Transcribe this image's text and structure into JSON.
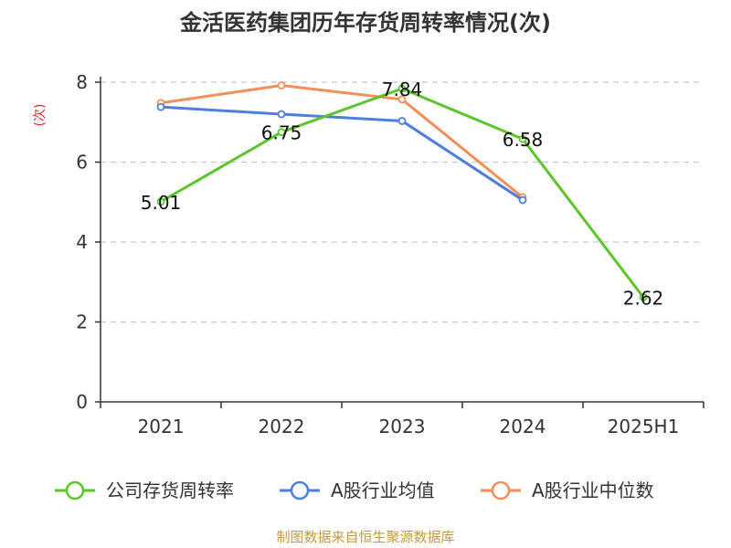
{
  "chart_data": {
    "type": "line",
    "title": "金活医药集团历年存货周转率情况(次)",
    "ylabel": "(次)",
    "xlabel": "",
    "categories": [
      "2021",
      "2022",
      "2023",
      "2024",
      "2025H1"
    ],
    "ylim": [
      0,
      8
    ],
    "yticks": [
      0,
      2,
      4,
      6,
      8
    ],
    "grid": "horizontal dashed",
    "legend_position": "bottom",
    "series": [
      {
        "name": "公司存货周转率",
        "color": "#5cc52a",
        "values": [
          5.01,
          6.75,
          7.84,
          6.58,
          2.62
        ],
        "labels": [
          "5.01",
          "6.75",
          "7.84",
          "6.58",
          "2.62"
        ]
      },
      {
        "name": "A股行业均值",
        "color": "#4c7fdc",
        "values": [
          7.38,
          7.2,
          7.03,
          5.05,
          null
        ]
      },
      {
        "name": "A股行业中位数",
        "color": "#f28e58",
        "values": [
          7.48,
          7.92,
          7.57,
          5.12,
          null
        ]
      }
    ]
  },
  "source": "制图数据来自恒生聚源数据库"
}
